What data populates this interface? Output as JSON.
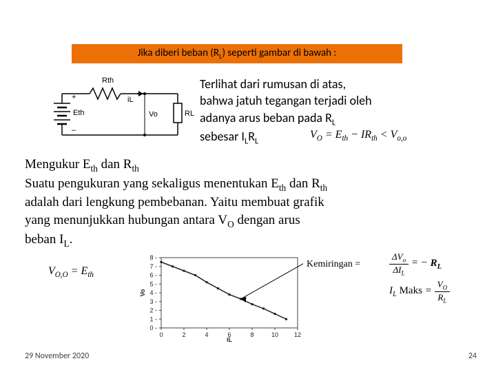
{
  "header": {
    "bg_color": "#ec7005",
    "text_before": "Jika diberi beban (R",
    "sub1": "L",
    "text_after": ") seperti gambar di bawah :"
  },
  "circuit": {
    "labels": {
      "rth": "Rth",
      "il": "iL",
      "eth": "Eth",
      "plus": "+",
      "minus": "–",
      "vo": "Vo",
      "rl": "RL"
    },
    "line_color": "#000000"
  },
  "para1": {
    "l1": "Terlihat dari rumusan di atas,",
    "l2": "bahwa jatuh tegangan terjadi oleh",
    "l3_a": "adanya arus beban pada R",
    "l3_sub": "L",
    "l4_a": "sebesar I",
    "l4_sub1": "L",
    "l4_b": "R",
    "l4_sub2": "L"
  },
  "formula_vo": "V_O = E_th − IR_th < V_o,o",
  "para2": {
    "l1_a": "Mengukur E",
    "l1_s1": "th",
    "l1_b": " dan R",
    "l1_s2": "th",
    "l2_a": "Suatu pengukuran yang sekaligus menentukan E",
    "l2_s1": "th",
    "l2_b": " dan R",
    "l2_s2": "th",
    "l3": "adalah dari lengkung pembebanan. Yaitu membuat grafik",
    "l4_a": "yang menunjukkan hubungan antara V",
    "l4_s1": "O",
    "l4_b": " dengan arus",
    "l5_a": "beban I",
    "l5_s1": "L",
    "l5_b": "."
  },
  "kemiringan_label": "Kemiringan =",
  "formula_rl": {
    "eq": " = − R_L",
    "num": "ΔV_o",
    "den": "ΔI_L"
  },
  "formula_il": {
    "lhs": "I_L Maks",
    "num": "V_O",
    "den": "R_L"
  },
  "formula_bottom": "V_O,O = E_th",
  "chart": {
    "type": "line",
    "x_ticks": [
      0,
      2,
      4,
      6,
      8,
      10,
      12
    ],
    "y_ticks": [
      0,
      1,
      2,
      3,
      4,
      5,
      6,
      7,
      8
    ],
    "xlim": [
      0,
      12
    ],
    "ylim": [
      0,
      8
    ],
    "xlabel": "iL",
    "ylabel": "Vo",
    "points_x": [
      0,
      1,
      2,
      3,
      4,
      5,
      6,
      7,
      8,
      9,
      10,
      11
    ],
    "points_y": [
      7.5,
      7.0,
      6.5,
      6.0,
      5.2,
      4.5,
      3.8,
      3.3,
      2.7,
      2.2,
      1.6,
      1.0
    ],
    "line_color": "#202020",
    "marker_color": "#202020",
    "marker_size": 3,
    "background": "#ffffff",
    "axis_color": "#404040"
  },
  "footer": {
    "date": "29 November 2020",
    "page": "24"
  }
}
